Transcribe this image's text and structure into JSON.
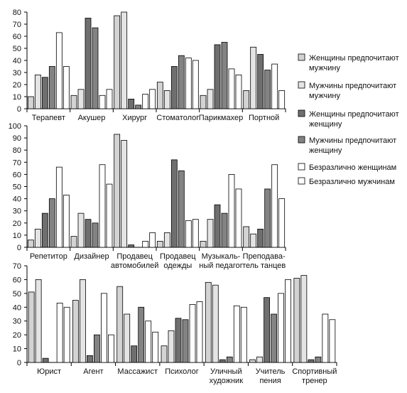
{
  "chart_data": [
    {
      "type": "bar",
      "ylim": [
        0,
        80
      ],
      "yticks": [
        "0",
        "10",
        "20",
        "30",
        "40",
        "50",
        "60",
        "70",
        "80"
      ],
      "categories": [
        [
          "Терапевт"
        ],
        [
          "Акушер"
        ],
        [
          "Хирург"
        ],
        [
          "Стоматолог"
        ],
        [
          "Парикмахер"
        ],
        [
          "Портной"
        ]
      ],
      "series": [
        {
          "name": "Женщины предпочитают мужчину",
          "values": [
            10,
            11,
            77,
            22,
            11,
            15
          ]
        },
        {
          "name": "Мужчины предпочитают мужчину",
          "values": [
            28,
            16,
            80,
            15,
            16,
            51
          ]
        },
        {
          "name": "Женщины предпочитают женщину",
          "values": [
            26,
            75,
            8,
            35,
            53,
            45
          ]
        },
        {
          "name": "Мужчины предпочитают женщину",
          "values": [
            35,
            67,
            3,
            44,
            55,
            32
          ]
        },
        {
          "name": "Безразлично женщинам",
          "values": [
            63,
            11,
            12,
            42,
            33,
            37
          ]
        },
        {
          "name": "Безразлично мужчинам",
          "values": [
            35,
            16,
            16,
            40,
            28,
            15
          ]
        }
      ]
    },
    {
      "type": "bar",
      "ylim": [
        0,
        100
      ],
      "yticks": [
        "0",
        "10",
        "20",
        "30",
        "40",
        "50",
        "60",
        "70",
        "80",
        "90",
        "100"
      ],
      "categories": [
        [
          "Репетитор"
        ],
        [
          "Дизайнер"
        ],
        [
          "Продавец",
          "автомобилей"
        ],
        [
          "Продавец",
          "одежды"
        ],
        [
          "Музыкаль-",
          "ный педагог"
        ],
        [
          "Преподава-",
          "тель танцев"
        ]
      ],
      "series": [
        {
          "name": "Женщины предпочитают мужчину",
          "values": [
            6,
            9,
            93,
            5,
            5,
            17
          ]
        },
        {
          "name": "Мужчины предпочитают мужчину",
          "values": [
            15,
            28,
            88,
            12,
            23,
            11
          ]
        },
        {
          "name": "Женщины предпочитают женщину",
          "values": [
            28,
            23,
            2,
            72,
            35,
            15
          ]
        },
        {
          "name": "Мужчины предпочитают женщину",
          "values": [
            40,
            20,
            0,
            63,
            28,
            48
          ]
        },
        {
          "name": "Безразлично женщинам",
          "values": [
            66,
            68,
            5,
            22,
            60,
            68
          ]
        },
        {
          "name": "Безразлично мужчинам",
          "values": [
            43,
            52,
            12,
            23,
            48,
            40
          ]
        }
      ]
    },
    {
      "type": "bar",
      "ylim": [
        0,
        70
      ],
      "yticks": [
        "0",
        "10",
        "20",
        "30",
        "40",
        "50",
        "60",
        "70"
      ],
      "categories": [
        [
          "Юрист"
        ],
        [
          "Агент"
        ],
        [
          "Массажист"
        ],
        [
          "Психолог"
        ],
        [
          "Уличный",
          "художник"
        ],
        [
          "Учитель",
          "пения"
        ],
        [
          "Спортивный",
          "тренер"
        ]
      ],
      "series": [
        {
          "name": "Женщины предпочитают мужчину",
          "values": [
            51,
            45,
            55,
            12,
            58,
            2,
            61
          ]
        },
        {
          "name": "Мужчины предпочитают мужчину",
          "values": [
            60,
            60,
            35,
            23,
            56,
            4,
            63
          ]
        },
        {
          "name": "Женщины предпочитают женщину",
          "values": [
            3,
            5,
            12,
            32,
            2,
            47,
            2
          ]
        },
        {
          "name": "Мужчины предпочитают женщину",
          "values": [
            0,
            20,
            40,
            31,
            4,
            35,
            4
          ]
        },
        {
          "name": "Безразлично женщинам",
          "values": [
            43,
            50,
            30,
            42,
            41,
            50,
            35
          ]
        },
        {
          "name": "Безразлично мужчинам",
          "values": [
            40,
            20,
            22,
            44,
            40,
            60,
            31
          ]
        }
      ]
    }
  ],
  "legend": {
    "placement": "right",
    "items": [
      {
        "lines": [
          "Женщины предпочитают",
          "мужчину"
        ],
        "color": "#d3d3d3"
      },
      {
        "lines": [
          "Мужчины предпочитают",
          "мужчину"
        ],
        "color": "#e4e4e4"
      },
      {
        "lines": [
          "Женщины предпочитают",
          "женщину"
        ],
        "color": "#6f6f6f"
      },
      {
        "lines": [
          "Мужчины предпочитают",
          "женщину"
        ],
        "color": "#838383"
      },
      {
        "lines": [
          "Безразлично женщинам"
        ],
        "color": "#ffffff"
      },
      {
        "lines": [
          "Безразлично мужчинам"
        ],
        "color": "#ffffff"
      }
    ]
  }
}
